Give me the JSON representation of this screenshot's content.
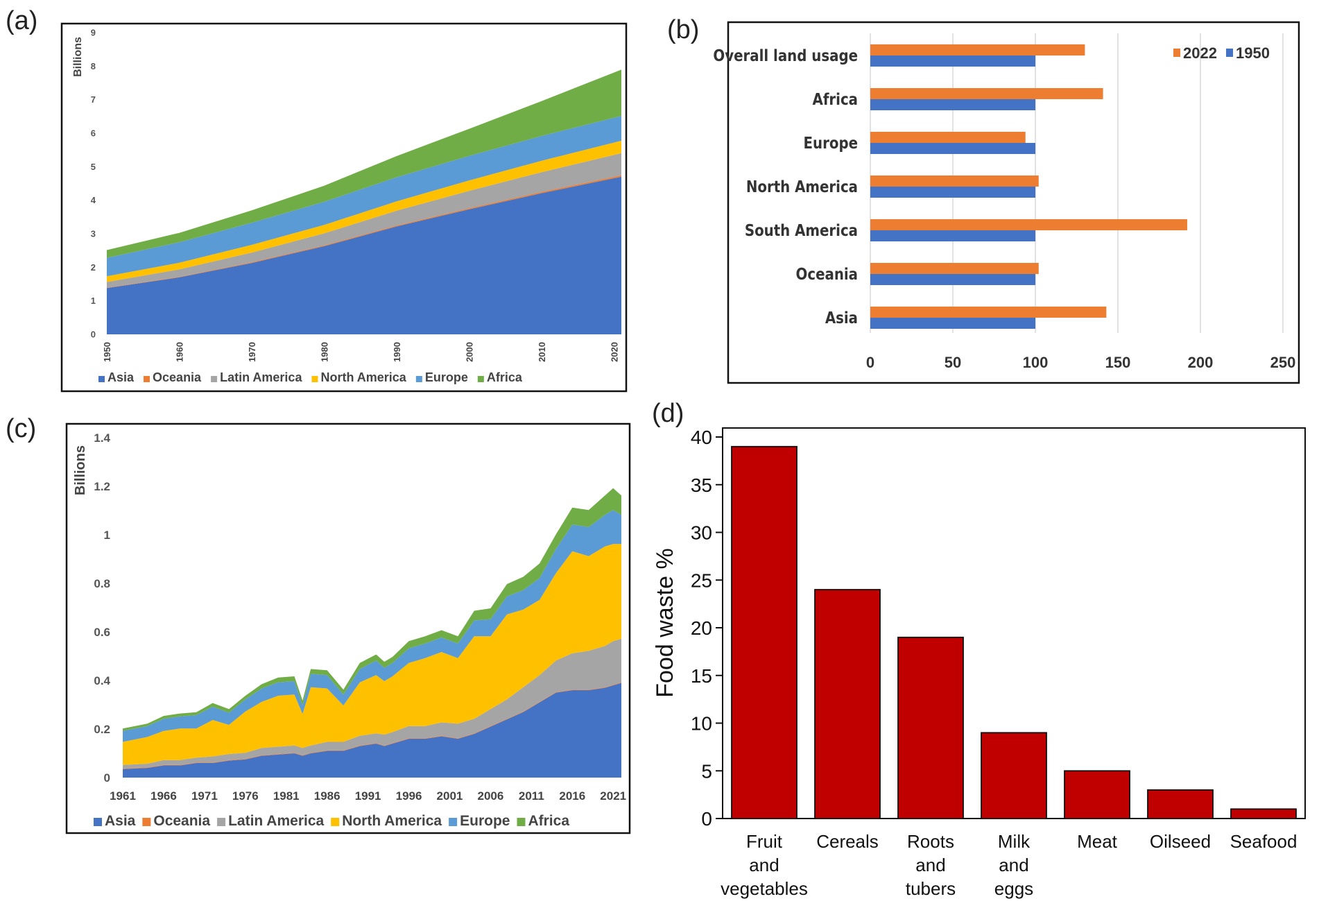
{
  "panels": {
    "a": {
      "label": "(a)"
    },
    "b": {
      "label": "(b)"
    },
    "c": {
      "label": "(c)"
    },
    "d": {
      "label": "(d)"
    }
  },
  "chart_data": [
    {
      "id": "a",
      "type": "area",
      "stacked": true,
      "ylabel": "Billions",
      "ylim": [
        0,
        9
      ],
      "yticks": [
        0,
        1,
        2,
        3,
        4,
        5,
        6,
        7,
        8,
        9
      ],
      "x": [
        1950,
        1960,
        1970,
        1980,
        1990,
        2000,
        2010,
        2021
      ],
      "xticks": [
        1950,
        1960,
        1970,
        1980,
        1990,
        2000,
        2010,
        2020
      ],
      "legend_position": "bottom",
      "series": [
        {
          "name": "Asia",
          "color": "#4472C4",
          "values": [
            1.38,
            1.7,
            2.13,
            2.63,
            3.22,
            3.73,
            4.21,
            4.7
          ]
        },
        {
          "name": "Oceania",
          "color": "#ED7D31",
          "values": [
            0.013,
            0.016,
            0.02,
            0.023,
            0.027,
            0.031,
            0.037,
            0.045
          ]
        },
        {
          "name": "Latin America",
          "color": "#A5A5A5",
          "values": [
            0.17,
            0.22,
            0.29,
            0.36,
            0.44,
            0.52,
            0.59,
            0.66
          ]
        },
        {
          "name": "North America",
          "color": "#FFC000",
          "values": [
            0.17,
            0.2,
            0.23,
            0.25,
            0.28,
            0.31,
            0.34,
            0.37
          ]
        },
        {
          "name": "Europe",
          "color": "#5B9BD5",
          "values": [
            0.55,
            0.61,
            0.66,
            0.69,
            0.72,
            0.73,
            0.74,
            0.74
          ]
        },
        {
          "name": "Africa",
          "color": "#70AD47",
          "values": [
            0.23,
            0.28,
            0.37,
            0.48,
            0.63,
            0.81,
            1.04,
            1.38
          ]
        }
      ]
    },
    {
      "id": "b",
      "type": "bar",
      "orientation": "horizontal",
      "categories": [
        "Overall land usage",
        "Africa",
        "Europe",
        "North America",
        "South America",
        "Oceania",
        "Asia"
      ],
      "series": [
        {
          "name": "2022",
          "color": "#ED7D31",
          "values": [
            130,
            141,
            94,
            102,
            192,
            102,
            143
          ]
        },
        {
          "name": "1950",
          "color": "#4472C4",
          "values": [
            100,
            100,
            100,
            100,
            100,
            100,
            100
          ]
        }
      ],
      "xlim": [
        0,
        250
      ],
      "xticks": [
        0,
        50,
        100,
        150,
        200,
        250
      ],
      "grid": true,
      "legend_position": "top-right"
    },
    {
      "id": "c",
      "type": "area",
      "stacked": true,
      "ylabel": "Billions",
      "ylim": [
        0,
        1.4
      ],
      "yticks": [
        0,
        0.2,
        0.4,
        0.6,
        0.8,
        1,
        1.2,
        1.4
      ],
      "ytick_labels": [
        "0",
        "0.2",
        "0.4",
        "0.6",
        "0.8",
        "1",
        "1.2",
        "1.4"
      ],
      "x": [
        1961,
        1964,
        1966,
        1968,
        1970,
        1972,
        1974,
        1976,
        1978,
        1980,
        1982,
        1983,
        1984,
        1986,
        1988,
        1990,
        1992,
        1993,
        1994,
        1996,
        1998,
        2000,
        2002,
        2004,
        2006,
        2008,
        2010,
        2012,
        2014,
        2016,
        2018,
        2020,
        2021,
        2022
      ],
      "xticks": [
        1961,
        1966,
        1971,
        1976,
        1981,
        1986,
        1991,
        1996,
        2001,
        2006,
        2011,
        2016,
        2021
      ],
      "legend_position": "bottom",
      "series": [
        {
          "name": "Asia",
          "color": "#4472C4",
          "values": [
            0.035,
            0.04,
            0.05,
            0.05,
            0.06,
            0.06,
            0.07,
            0.075,
            0.09,
            0.095,
            0.1,
            0.09,
            0.1,
            0.11,
            0.11,
            0.13,
            0.14,
            0.13,
            0.14,
            0.16,
            0.16,
            0.17,
            0.16,
            0.18,
            0.21,
            0.24,
            0.27,
            0.31,
            0.35,
            0.36,
            0.36,
            0.37,
            0.38,
            0.39
          ]
        },
        {
          "name": "Oceania",
          "color": "#ED7D31",
          "values": [
            0.002,
            0.002,
            0.002,
            0.002,
            0.002,
            0.002,
            0.002,
            0.002,
            0.002,
            0.002,
            0.002,
            0.002,
            0.002,
            0.002,
            0.002,
            0.002,
            0.002,
            0.002,
            0.002,
            0.002,
            0.002,
            0.002,
            0.002,
            0.002,
            0.002,
            0.002,
            0.002,
            0.002,
            0.002,
            0.002,
            0.002,
            0.002,
            0.002,
            0.002
          ]
        },
        {
          "name": "Latin America",
          "color": "#A5A5A5",
          "values": [
            0.015,
            0.015,
            0.02,
            0.02,
            0.02,
            0.025,
            0.025,
            0.025,
            0.03,
            0.03,
            0.03,
            0.03,
            0.03,
            0.035,
            0.035,
            0.04,
            0.04,
            0.045,
            0.045,
            0.05,
            0.05,
            0.055,
            0.06,
            0.06,
            0.07,
            0.08,
            0.1,
            0.11,
            0.13,
            0.15,
            0.16,
            0.17,
            0.18,
            0.18
          ]
        },
        {
          "name": "North America",
          "color": "#FFC000",
          "values": [
            0.095,
            0.11,
            0.12,
            0.13,
            0.12,
            0.15,
            0.12,
            0.17,
            0.19,
            0.21,
            0.21,
            0.14,
            0.24,
            0.22,
            0.15,
            0.22,
            0.24,
            0.22,
            0.23,
            0.26,
            0.28,
            0.29,
            0.27,
            0.34,
            0.3,
            0.35,
            0.32,
            0.31,
            0.36,
            0.42,
            0.39,
            0.41,
            0.4,
            0.39
          ]
        },
        {
          "name": "Europe",
          "color": "#5B9BD5",
          "values": [
            0.045,
            0.045,
            0.05,
            0.05,
            0.055,
            0.055,
            0.05,
            0.05,
            0.055,
            0.055,
            0.055,
            0.035,
            0.055,
            0.055,
            0.045,
            0.055,
            0.06,
            0.055,
            0.055,
            0.06,
            0.06,
            0.06,
            0.06,
            0.065,
            0.07,
            0.075,
            0.08,
            0.09,
            0.1,
            0.11,
            0.12,
            0.13,
            0.14,
            0.12
          ]
        },
        {
          "name": "Africa",
          "color": "#70AD47",
          "values": [
            0.01,
            0.01,
            0.012,
            0.012,
            0.012,
            0.015,
            0.015,
            0.015,
            0.018,
            0.02,
            0.02,
            0.02,
            0.02,
            0.02,
            0.02,
            0.025,
            0.025,
            0.025,
            0.025,
            0.03,
            0.03,
            0.03,
            0.03,
            0.04,
            0.045,
            0.05,
            0.055,
            0.06,
            0.06,
            0.07,
            0.07,
            0.08,
            0.09,
            0.08
          ]
        }
      ]
    },
    {
      "id": "d",
      "type": "bar",
      "ylabel": "Food waste %",
      "categories": [
        "Fruit and vegetables",
        "Cereals",
        "Roots and tubers",
        "Milk and eggs",
        "Meat",
        "Oilseed",
        "Seafood"
      ],
      "category_lines": [
        [
          "Fruit",
          "and",
          "vegetables"
        ],
        [
          "Cereals"
        ],
        [
          "Roots",
          "and",
          "tubers"
        ],
        [
          "Milk",
          "and",
          "eggs"
        ],
        [
          "Meat"
        ],
        [
          "Oilseed"
        ],
        [
          "Seafood"
        ]
      ],
      "values": [
        39,
        24,
        19,
        9,
        5,
        3,
        1
      ],
      "color": "#C00000",
      "ylim": [
        0,
        40
      ],
      "yticks": [
        0,
        5,
        10,
        15,
        20,
        25,
        30,
        35,
        40
      ]
    }
  ]
}
